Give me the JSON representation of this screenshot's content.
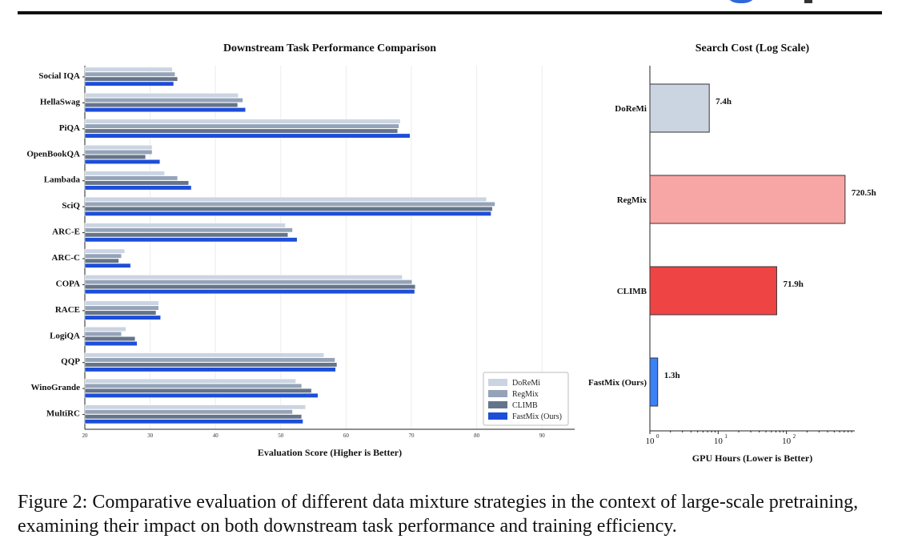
{
  "figure_caption": "Figure 2: Comparative evaluation of different data mixture strategies in the context of large-scale pretraining, examining their impact on both downstream task performance and training efficiency.",
  "colors": {
    "DoReMi": "#cbd4e1",
    "RegMix": "#94a3b8",
    "CLIMB": "#64748b",
    "FastMix (Ours)": "#1d4ed8",
    "cost_DoReMi": "#cbd5e1",
    "cost_RegMix": "#f8a5a5",
    "cost_CLIMB": "#ef4444",
    "cost_FastMix": "#3b82f6"
  },
  "chart_data": [
    {
      "type": "bar",
      "orientation": "horizontal",
      "title": "Downstream Task Performance Comparison",
      "xlabel": "Evaluation Score (Higher is Better)",
      "ylabel": "",
      "xlim": [
        20,
        95
      ],
      "xticks": [
        20,
        30,
        40,
        50,
        60,
        70,
        80,
        90
      ],
      "grid": "vertical",
      "legend": "bottom-right",
      "categories": [
        "Social IQA",
        "HellaSwag",
        "PiQA",
        "OpenBookQA",
        "Lambada",
        "SciQ",
        "ARC-E",
        "ARC-C",
        "COPA",
        "RACE",
        "LogiQA",
        "QQP",
        "WinoGrande",
        "MultiRC"
      ],
      "series": [
        {
          "name": "DoReMi",
          "values": [
            33.4,
            43.5,
            68.3,
            30.3,
            32.2,
            81.5,
            50.7,
            26.1,
            68.6,
            31.3,
            26.3,
            56.6,
            52.3,
            53.8
          ]
        },
        {
          "name": "RegMix",
          "values": [
            33.8,
            44.2,
            68.1,
            30.3,
            34.2,
            82.8,
            51.8,
            25.6,
            70.1,
            31.3,
            25.6,
            58.3,
            53.2,
            51.8
          ]
        },
        {
          "name": "CLIMB",
          "values": [
            34.2,
            43.4,
            67.9,
            29.3,
            35.9,
            82.4,
            51.1,
            25.2,
            70.6,
            30.9,
            27.7,
            58.6,
            54.7,
            53.2
          ]
        },
        {
          "name": "FastMix (Ours)",
          "values": [
            33.6,
            44.6,
            69.8,
            31.5,
            36.3,
            82.2,
            52.5,
            27.0,
            70.5,
            31.6,
            28.0,
            58.4,
            55.7,
            53.4
          ]
        }
      ]
    },
    {
      "type": "bar",
      "orientation": "horizontal",
      "title": "Search Cost (Log Scale)",
      "xlabel": "GPU Hours (Lower is Better)",
      "ylabel": "",
      "xscale": "log",
      "xlim": [
        1,
        1000
      ],
      "xticks": [
        "10^0",
        "10^1",
        "10^2"
      ],
      "categories": [
        "DoReMi",
        "RegMix",
        "CLIMB",
        "FastMix (Ours)"
      ],
      "values": [
        7.4,
        720.5,
        71.9,
        1.3
      ],
      "data_labels": [
        "7.4h",
        "720.5h",
        "71.9h",
        "1.3h"
      ]
    }
  ]
}
